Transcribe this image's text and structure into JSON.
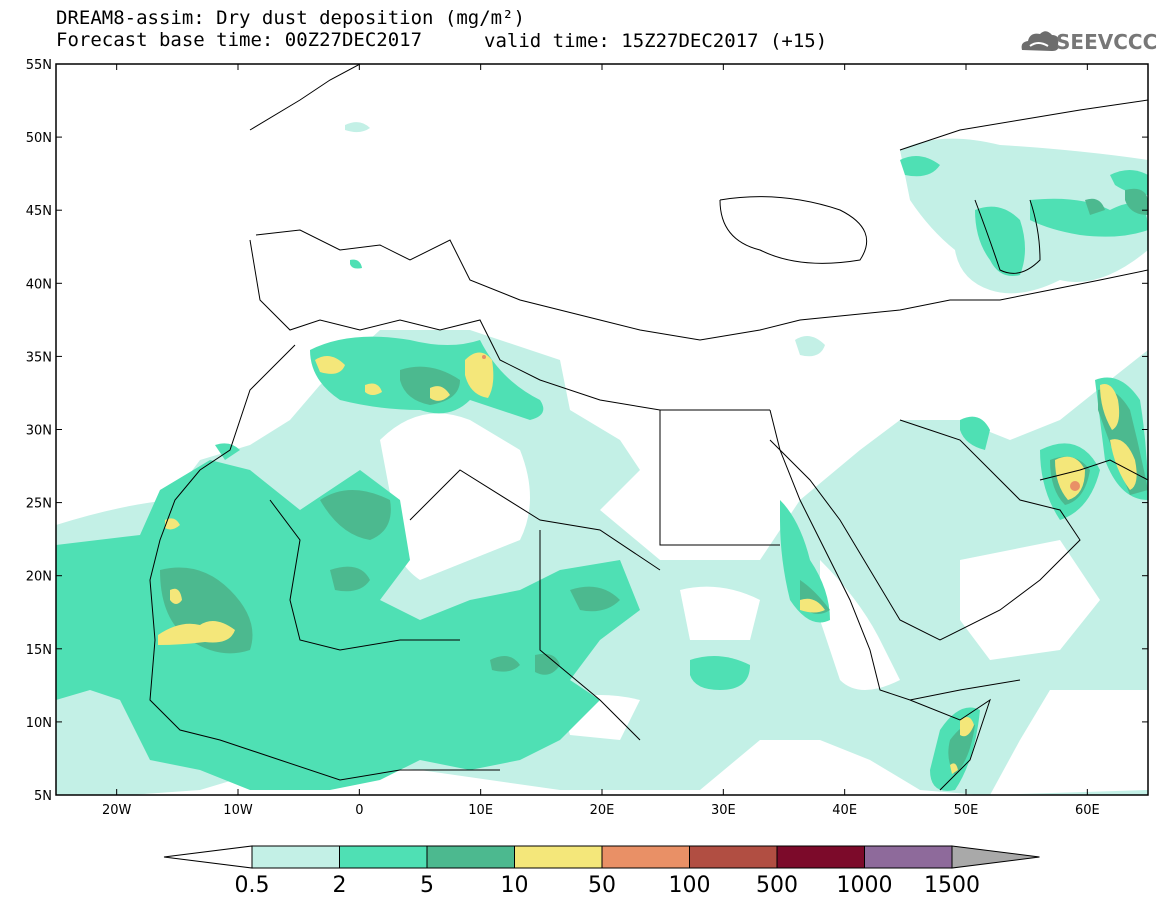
{
  "header": {
    "title": "DREAM8-assim: Dry dust deposition (mg/m²)",
    "base_time": "Forecast base time: 00Z27DEC2017",
    "valid_time": "valid time: 15Z27DEC2017 (+15)",
    "logo_text": "SEEVCCC"
  },
  "map": {
    "lat_labels": [
      "55N",
      "50N",
      "45N",
      "40N",
      "35N",
      "30N",
      "25N",
      "20N",
      "15N",
      "10N",
      "5N"
    ],
    "lon_labels": [
      "20W",
      "10W",
      "0",
      "10E",
      "20E",
      "30E",
      "40E",
      "50E",
      "60E"
    ],
    "lat_range": [
      5,
      55
    ],
    "lon_range": [
      -25,
      65
    ]
  },
  "colorbar": {
    "levels": [
      "0.5",
      "2",
      "5",
      "10",
      "50",
      "100",
      "500",
      "1000",
      "1500"
    ],
    "colors": [
      "#c3f0e6",
      "#4fe0b4",
      "#4cb98f",
      "#f4e77a",
      "#e99066",
      "#b14e42",
      "#7c0a2a",
      "#8e6a9b",
      "#a9a9a9"
    ]
  }
}
